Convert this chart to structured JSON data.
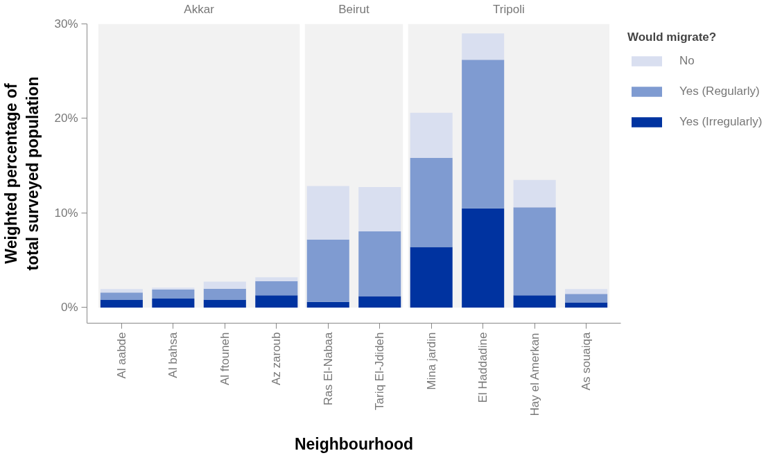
{
  "chart_data": {
    "type": "bar",
    "stacked": true,
    "xlabel": "Neighbourhood",
    "ylabel": "Weighted percentage of total surveyed population",
    "legend_title": "Would migrate?",
    "legend": "top right",
    "grid": false,
    "categories": [
      "Al aabde",
      "Al bahsa",
      "Al ftouneh",
      "Az zaroub",
      "Ras El-Nabaa",
      "Tariq El-Jdideh",
      "Mina jardin",
      "El Haddadine",
      "Hay el Amerkan",
      "As souaiqa"
    ],
    "series": [
      {
        "name": "Yes (Irregularly)",
        "color": "#0033a0",
        "values": [
          0.85,
          0.95,
          0.85,
          1.3,
          0.6,
          1.2,
          6.4,
          10.5,
          1.3,
          0.55
        ]
      },
      {
        "name": "Yes (Regularly)",
        "color": "#7f9bd1",
        "values": [
          0.75,
          0.95,
          1.15,
          1.5,
          6.6,
          6.85,
          9.45,
          15.7,
          9.3,
          0.9
        ]
      },
      {
        "name": "No",
        "color": "#d9dff0",
        "values": [
          0.35,
          0.2,
          0.75,
          0.4,
          5.65,
          4.7,
          4.75,
          2.8,
          2.9,
          0.5
        ]
      }
    ],
    "ylim": [
      -1.65,
      30
    ],
    "yticks": [
      {
        "value": 0,
        "label": "0%"
      },
      {
        "value": 10,
        "label": "10%"
      },
      {
        "value": 20,
        "label": "20%"
      },
      {
        "value": 30,
        "label": "30%"
      }
    ],
    "bands": [
      {
        "axis": "x",
        "from": "Al aabde",
        "to": "Az zaroub",
        "label": "Akkar",
        "color": "#f2f2f2"
      },
      {
        "axis": "x",
        "from": "Ras El-Nabaa",
        "to": "Tariq El-Jdideh",
        "label": "Beirut",
        "color": "#f2f2f2"
      },
      {
        "axis": "x",
        "from": "Mina jardin",
        "to": "As souaiqa",
        "label": "Tripoli",
        "color": "#f2f2f2"
      }
    ]
  }
}
